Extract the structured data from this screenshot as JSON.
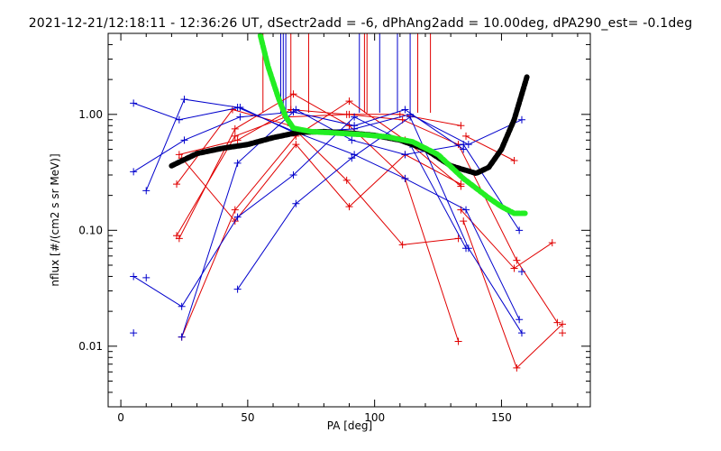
{
  "chart_data": {
    "type": "line",
    "title": "2021-12-21/12:18:11 - 12:36:26 UT, dSectr2add = -6, dPhAng2add = 10.00deg, dPA290_est=  -0.1deg",
    "xlabel": "PA [deg]",
    "ylabel": "nflux [#/(cm2 s sr MeV)]",
    "xlim": [
      -5,
      185
    ],
    "ylim": [
      0.003,
      5
    ],
    "yscale": "log",
    "x_ticks": [
      0,
      50,
      100,
      150
    ],
    "x_tick_labels": [
      "0",
      "50",
      "100",
      "150"
    ],
    "y_ticks": [
      0.01,
      0.1,
      1.0
    ],
    "y_tick_labels": [
      "0.01",
      "0.10",
      "1.00"
    ],
    "colors": {
      "red": "#e00000",
      "blue": "#0000cc",
      "green": "#22ee22",
      "black": "#000000"
    },
    "series": [
      {
        "color": "red",
        "x": [
          22,
          45,
          65,
          90,
          110,
          134
        ],
        "y": [
          0.09,
          0.65,
          0.95,
          1.0,
          1.0,
          0.8
        ]
      },
      {
        "color": "red",
        "x": [
          24,
          45,
          69,
          90,
          112,
          134
        ],
        "y": [
          0.012,
          0.15,
          0.65,
          1.3,
          0.6,
          0.24
        ]
      },
      {
        "color": "red",
        "x": [
          23,
          45,
          68,
          90,
          112,
          133
        ],
        "y": [
          0.085,
          0.75,
          1.5,
          0.8,
          0.28,
          0.011
        ]
      },
      {
        "color": "red",
        "x": [
          22,
          44,
          67,
          89,
          111,
          133
        ],
        "y": [
          0.25,
          1.1,
          0.8,
          0.27,
          0.075,
          0.085
        ]
      },
      {
        "color": "red",
        "x": [
          24,
          45,
          69,
          90,
          112,
          134
        ],
        "y": [
          0.42,
          0.12,
          0.55,
          0.16,
          0.45,
          0.25
        ]
      },
      {
        "color": "red",
        "x": [
          23,
          46,
          67,
          89,
          111,
          133,
          156,
          172
        ],
        "y": [
          0.45,
          0.6,
          1.1,
          1.0,
          0.9,
          0.55,
          0.055,
          0.016
        ]
      },
      {
        "color": "red",
        "x": [
          134,
          155,
          170
        ],
        "y": [
          0.15,
          0.047,
          0.078
        ]
      },
      {
        "color": "red",
        "x": [
          136,
          155
        ],
        "y": [
          0.65,
          0.4
        ]
      },
      {
        "color": "red",
        "x": [
          135,
          156,
          174
        ],
        "y": [
          0.12,
          0.0065,
          0.0155
        ]
      },
      {
        "color": "red",
        "x": [
          174
        ],
        "y": [
          0.013
        ]
      },
      {
        "color": "blue",
        "x": [
          5,
          23,
          47,
          68,
          92,
          114,
          137,
          158
        ],
        "y": [
          1.25,
          0.9,
          1.15,
          0.7,
          0.75,
          1.0,
          0.55,
          0.9
        ]
      },
      {
        "color": "blue",
        "x": [
          5,
          25,
          47,
          68,
          92,
          112,
          135
        ],
        "y": [
          0.32,
          0.6,
          0.95,
          1.05,
          0.8,
          1.1,
          0.5
        ]
      },
      {
        "color": "blue",
        "x": [
          10,
          25,
          46,
          69,
          92,
          112,
          136,
          157
        ],
        "y": [
          0.22,
          1.35,
          1.15,
          0.7,
          0.45,
          0.28,
          0.15,
          0.017
        ]
      },
      {
        "color": "blue",
        "x": [
          5,
          24,
          46,
          68,
          92,
          114,
          136
        ],
        "y": [
          0.04,
          0.022,
          0.13,
          0.3,
          0.95,
          0.55,
          0.07
        ]
      },
      {
        "color": "blue",
        "x": [
          24,
          46,
          69,
          91,
          112,
          135,
          157
        ],
        "y": [
          0.012,
          0.38,
          1.1,
          0.6,
          0.45,
          0.55,
          0.1
        ]
      },
      {
        "color": "blue",
        "x": [
          46,
          69,
          91,
          114,
          137,
          158
        ],
        "y": [
          0.031,
          0.17,
          0.42,
          0.95,
          0.07,
          0.013
        ]
      },
      {
        "color": "blue",
        "x": [
          10
        ],
        "y": [
          0.039
        ]
      },
      {
        "color": "blue",
        "x": [
          5
        ],
        "y": [
          0.013
        ]
      },
      {
        "color": "blue",
        "x": [
          158
        ],
        "y": [
          0.044
        ]
      }
    ],
    "fits": [
      {
        "color": "black",
        "x": [
          20,
          30,
          40,
          50,
          60,
          70,
          80,
          90,
          100,
          110,
          120,
          130,
          140,
          145,
          150,
          155,
          160
        ],
        "y": [
          0.36,
          0.46,
          0.51,
          0.55,
          0.63,
          0.7,
          0.71,
          0.69,
          0.66,
          0.6,
          0.5,
          0.36,
          0.31,
          0.35,
          0.5,
          0.9,
          2.1
        ]
      },
      {
        "color": "green",
        "x": [
          55,
          58,
          62,
          65,
          68,
          75,
          85,
          95,
          105,
          115,
          125,
          135,
          145,
          150,
          155,
          160
        ],
        "y": [
          4.8,
          2.6,
          1.4,
          0.95,
          0.76,
          0.71,
          0.69,
          0.67,
          0.64,
          0.58,
          0.45,
          0.28,
          0.19,
          0.16,
          0.14,
          0.14
        ]
      }
    ],
    "vlines_red": [
      56,
      67,
      74,
      96,
      97,
      117,
      122
    ],
    "vlines_blue": [
      63,
      64,
      65,
      94,
      102,
      109,
      114
    ]
  }
}
